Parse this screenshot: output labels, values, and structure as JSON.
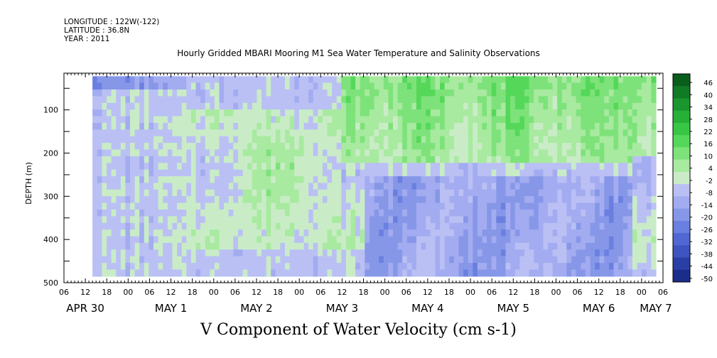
{
  "header": {
    "longitude": "LONGITUDE : 122W(-122)",
    "latitude": "LATITUDE : 36.8N",
    "year": "YEAR : 2011"
  },
  "chart_data": {
    "type": "heatmap",
    "title": "Hourly Gridded MBARI Mooring M1 Sea Water Temperature and Salinity Observations",
    "bottom_title": "V Component of Water Velocity (cm s-1)",
    "ylabel": "DEPTH (m)",
    "xlabel": "",
    "ylim": [
      500,
      15
    ],
    "y_ticks": [
      100,
      200,
      300,
      400,
      500
    ],
    "xlim_hours": [
      6,
      174
    ],
    "data_extent": {
      "x_start_hours": 14,
      "x_end_hours": 172,
      "depth_top": 22,
      "depth_bottom": 485
    },
    "x_hour_labels": [
      "06",
      "12",
      "18",
      "00",
      "06",
      "12",
      "18",
      "00",
      "06",
      "12",
      "18",
      "00",
      "06",
      "12",
      "18",
      "00",
      "06",
      "12",
      "18",
      "00",
      "06",
      "12",
      "18",
      "00",
      "06",
      "12",
      "18",
      "00",
      "06"
    ],
    "x_day_labels": [
      {
        "label": "APR 30",
        "hour": 12
      },
      {
        "label": "MAY  1",
        "hour": 36
      },
      {
        "label": "MAY  2",
        "hour": 60
      },
      {
        "label": "MAY  3",
        "hour": 84
      },
      {
        "label": "MAY  4",
        "hour": 108
      },
      {
        "label": "MAY  5",
        "hour": 132
      },
      {
        "label": "MAY  6",
        "hour": 156
      },
      {
        "label": "MAY  7",
        "hour": 172
      }
    ],
    "colorbar": {
      "levels": [
        -50,
        -44,
        -38,
        -32,
        -26,
        -20,
        -14,
        -8,
        -2,
        4,
        10,
        16,
        22,
        28,
        34,
        40,
        46
      ],
      "labels": [
        "46",
        "40",
        "34",
        "28",
        "22",
        "16",
        "10",
        "4",
        "-2",
        "-8",
        "-14",
        "-20",
        "-26",
        "-32",
        "-38",
        "-44",
        "-50"
      ],
      "colors": [
        "#1b2d8a",
        "#2a3fa6",
        "#3d55c0",
        "#5068d4",
        "#6a80e0",
        "#8797e8",
        "#a3acf0",
        "#bac0f4",
        "#c9ecc7",
        "#a8eaa0",
        "#7ee27a",
        "#55d85a",
        "#37c744",
        "#27b038",
        "#1a962e",
        "#117a25",
        "#0a5e1c"
      ]
    },
    "pattern_description": "Mostly weak (-8..+10) values; positive (green) band at top 50-250 m from May 3 through May 7; negative (blue) region below 250 m May 3-May 6; strong blue near surface Apr 30-May 1."
  }
}
